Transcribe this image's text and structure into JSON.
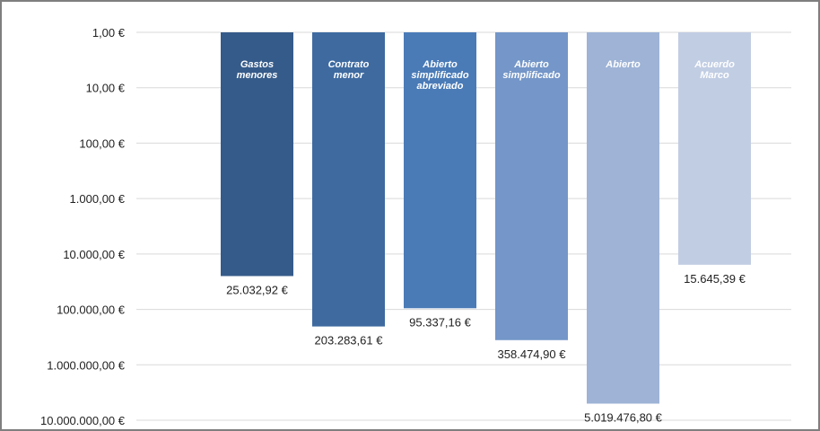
{
  "chart_data": {
    "type": "bar",
    "title": "",
    "xlabel": "",
    "ylabel": "",
    "scale": "log",
    "axis_reversed": true,
    "grid": true,
    "legend": "none",
    "ylim": [
      1,
      10000000
    ],
    "y_ticks": [
      1,
      10,
      100,
      1000,
      10000,
      100000,
      1000000,
      10000000
    ],
    "y_tick_labels": [
      "1,00 €",
      "10,00 €",
      "100,00 €",
      "1.000,00 €",
      "10.000,00 €",
      "100.000,00 €",
      "1.000.000,00 €",
      "10.000.000,00 €"
    ],
    "categories": [
      "Gastos menores",
      "Contrato menor",
      "Abierto simplificado abreviado",
      "Abierto simplificado",
      "Abierto",
      "Acuerdo Marco"
    ],
    "values": [
      25032.92,
      203283.61,
      95337.16,
      358474.9,
      5019476.8,
      15645.39
    ],
    "value_labels": [
      "25.032,92 €",
      "203.283,61 €",
      "95.337,16 €",
      "358.474,90 €",
      "5.019.476,80 €",
      "15.645,39 €"
    ],
    "colors": [
      "#355b8a",
      "#3e6aa0",
      "#4a7bb7",
      "#7496c8",
      "#9eb3d6",
      "#c1cde3"
    ]
  }
}
